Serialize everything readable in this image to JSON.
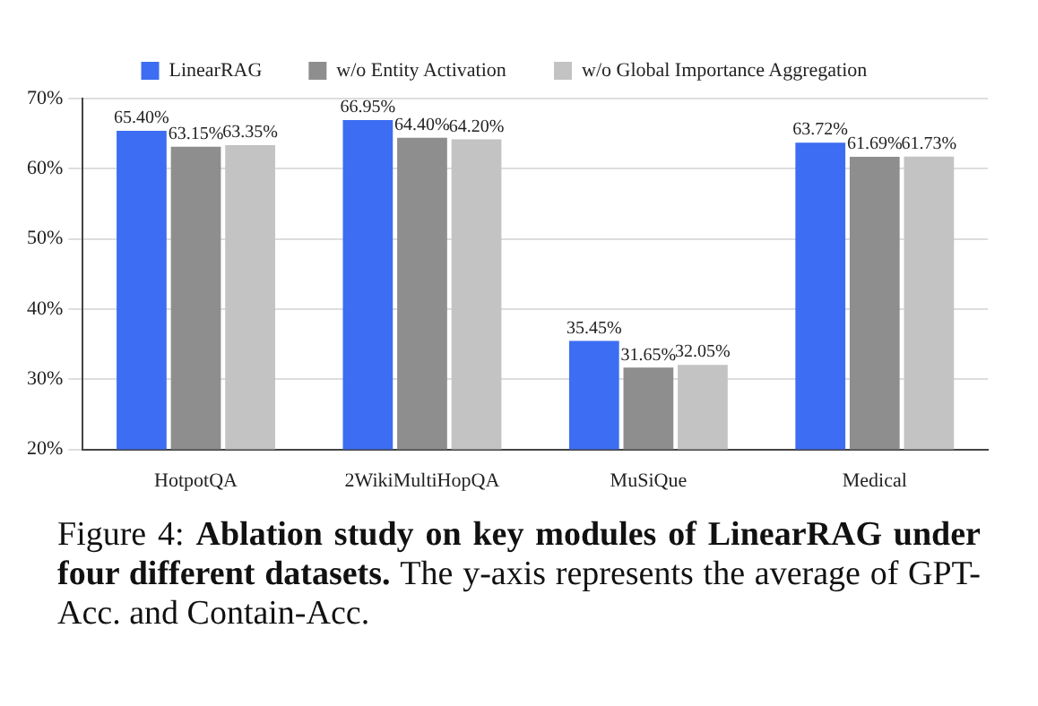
{
  "chart_data": {
    "type": "bar",
    "categories": [
      "HotpotQA",
      "2WikiMultiHopQA",
      "MuSiQue",
      "Medical"
    ],
    "series": [
      {
        "name": "LinearRAG",
        "color": "#3d6df2",
        "values": [
          65.4,
          66.95,
          35.45,
          63.72
        ],
        "value_labels": [
          "65.40%",
          "66.95%",
          "35.45%",
          "63.72%"
        ]
      },
      {
        "name": "w/o Entity Activation",
        "color": "#8e8e8e",
        "values": [
          63.15,
          64.4,
          31.65,
          61.69
        ],
        "value_labels": [
          "63.15%",
          "64.40%",
          "31.65%",
          "61.69%"
        ]
      },
      {
        "name": "w/o Global Importance Aggregation",
        "color": "#c3c3c3",
        "values": [
          63.35,
          64.2,
          32.05,
          61.73
        ],
        "value_labels": [
          "63.35%",
          "64.20%",
          "32.05%",
          "61.73%"
        ]
      }
    ],
    "ylim": [
      20,
      70
    ],
    "yticks": [
      {
        "value": 20,
        "label": "20%"
      },
      {
        "value": 30,
        "label": "30%"
      },
      {
        "value": 40,
        "label": "40%"
      },
      {
        "value": 50,
        "label": "50%"
      },
      {
        "value": 60,
        "label": "60%"
      },
      {
        "value": 70,
        "label": "70%"
      }
    ],
    "grid": "y",
    "legend": "top",
    "annotations": [
      "Figure 4: ",
      "Ablation study on key modules of LinearRAG under four different datasets.",
      "The y-axis represents the average of GPT-Acc. and Contain-Acc."
    ]
  }
}
